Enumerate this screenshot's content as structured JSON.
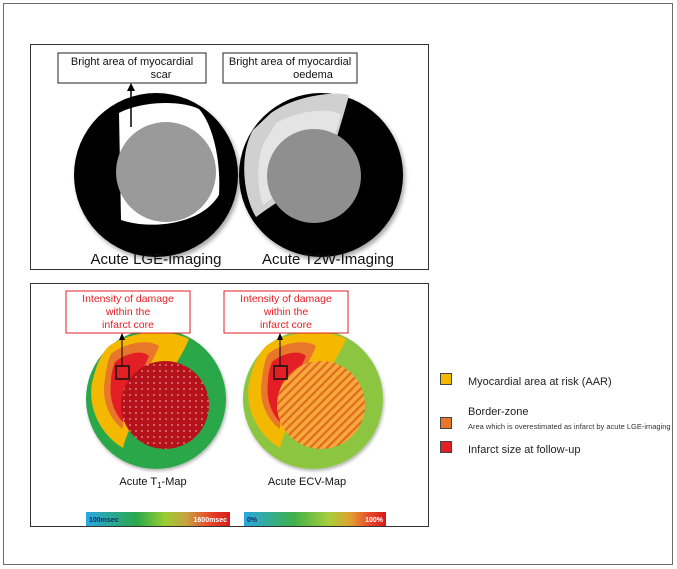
{
  "top_panel": {
    "left_label_line1": "Bright area of myocardial",
    "left_label_line2": "scar",
    "right_label_line1": "Bright area of myocardial",
    "right_label_line2": "oedema",
    "left_caption": "Acute LGE-Imaging",
    "right_caption": "Acute T2W-Imaging"
  },
  "bottom_panel": {
    "left_label_line1": "Intensity of damage",
    "left_label_line2": "within the",
    "left_label_line3": "infarct core",
    "right_label_line1": "Intensity of damage",
    "right_label_line2": "within the",
    "right_label_line3": "infarct core",
    "left_caption_a": "Acute T",
    "left_caption_sub": "1",
    "left_caption_b": "-Map",
    "right_caption": "Acute ECV-Map",
    "left_scale_min": "100msec",
    "left_scale_max": "1600msec",
    "right_scale_min": "0%",
    "right_scale_max": "100%"
  },
  "legend": {
    "items": [
      {
        "label": "Myocardial area at risk (AAR)",
        "sub": "",
        "color": "#f5b800"
      },
      {
        "label": "Border-zone",
        "sub": "Area which is overestimated as infarct by acute LGE-imaging",
        "color": "#e8762b"
      },
      {
        "label": "Infarct size at follow-up",
        "sub": "",
        "color": "#e31e24"
      }
    ]
  },
  "colors": {
    "aar": "#f5b800",
    "border_zone": "#e8762b",
    "infarct": "#e31e24",
    "label_red": "#e31e24",
    "t1_green": "#2aa84a",
    "ecv_green": "#8cc63f"
  }
}
